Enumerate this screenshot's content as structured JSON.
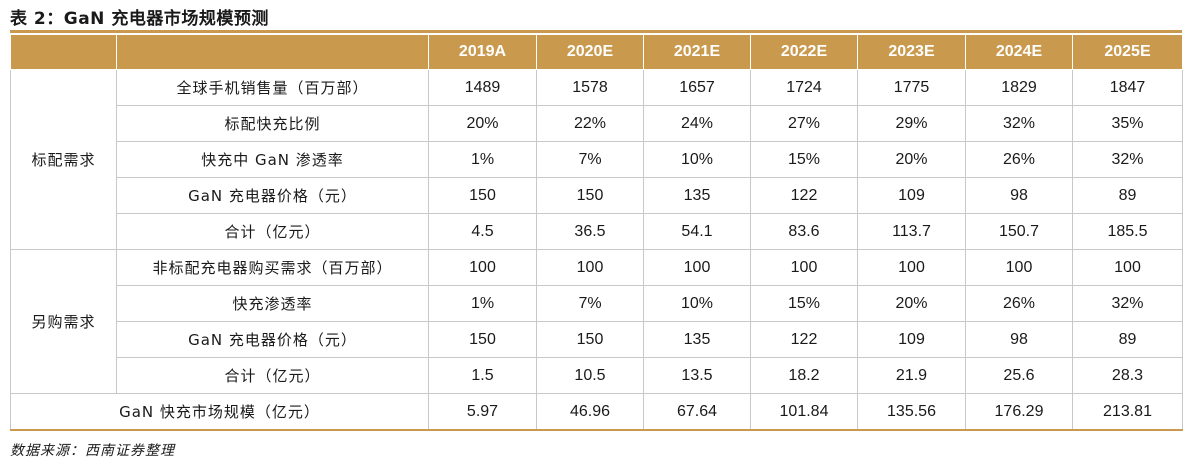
{
  "title": "表 2：GaN 充电器市场规模预测",
  "source": "数据来源：西南证券整理",
  "colors": {
    "accent": "#c99a4d"
  },
  "table": {
    "headers": [
      "2019A",
      "2020E",
      "2021E",
      "2022E",
      "2023E",
      "2024E",
      "2025E"
    ],
    "groups": [
      {
        "name": "标配需求",
        "rows": [
          {
            "label": "全球手机销售量（百万部）",
            "values": [
              "1489",
              "1578",
              "1657",
              "1724",
              "1775",
              "1829",
              "1847"
            ]
          },
          {
            "label": "标配快充比例",
            "values": [
              "20%",
              "22%",
              "24%",
              "27%",
              "29%",
              "32%",
              "35%"
            ]
          },
          {
            "label": "快充中 GaN 渗透率",
            "values": [
              "1%",
              "7%",
              "10%",
              "15%",
              "20%",
              "26%",
              "32%"
            ]
          },
          {
            "label": "GaN 充电器价格（元）",
            "values": [
              "150",
              "150",
              "135",
              "122",
              "109",
              "98",
              "89"
            ]
          },
          {
            "label": "合计（亿元）",
            "values": [
              "4.5",
              "36.5",
              "54.1",
              "83.6",
              "113.7",
              "150.7",
              "185.5"
            ]
          }
        ]
      },
      {
        "name": "另购需求",
        "rows": [
          {
            "label": "非标配充电器购买需求（百万部）",
            "values": [
              "100",
              "100",
              "100",
              "100",
              "100",
              "100",
              "100"
            ]
          },
          {
            "label": "快充渗透率",
            "values": [
              "1%",
              "7%",
              "10%",
              "15%",
              "20%",
              "26%",
              "32%"
            ]
          },
          {
            "label": "GaN 充电器价格（元）",
            "values": [
              "150",
              "150",
              "135",
              "122",
              "109",
              "98",
              "89"
            ]
          },
          {
            "label": "合计（亿元）",
            "values": [
              "1.5",
              "10.5",
              "13.5",
              "18.2",
              "21.9",
              "25.6",
              "28.3"
            ]
          }
        ]
      }
    ],
    "total": {
      "label": "GaN 快充市场规模（亿元）",
      "values": [
        "5.97",
        "46.96",
        "67.64",
        "101.84",
        "135.56",
        "176.29",
        "213.81"
      ]
    }
  }
}
